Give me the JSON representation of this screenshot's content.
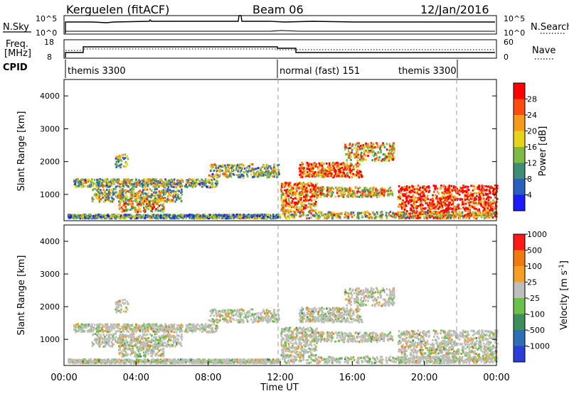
{
  "header": {
    "station": "Kerguelen (fitACF)",
    "beam": "Beam 06",
    "date": "12/Jan/2016"
  },
  "panel_labels": {
    "nsky": "N.Sky",
    "nsearch": "N.Search",
    "freq": "Freq.",
    "freq_unit": "[MHz]",
    "nave": "Nave",
    "cpid": "CPID"
  },
  "panel_ticks": {
    "noise_top": "10^5",
    "noise_bottom": "10^0",
    "freq_top": "18",
    "freq_bottom": "8",
    "nave_top": "60",
    "nave_bottom": "0"
  },
  "cpid_segments": [
    {
      "label": "themis 3300"
    },
    {
      "label": "normal (fast) 151"
    },
    {
      "label": "themis 3300"
    }
  ],
  "chart_data": [
    {
      "type": "heatmap",
      "name": "power",
      "ylabel": "Slant Range [km]",
      "ylim": [
        200,
        4500
      ],
      "yticks": [
        "1000",
        "2000",
        "3000",
        "4000"
      ],
      "xlim": [
        0,
        24
      ],
      "colorbar_label": "Power [dB]",
      "colorbar_ticks": [
        "4",
        "8",
        "12",
        "16",
        "20",
        "24",
        "28"
      ],
      "colors": [
        "#1a1aff",
        "#2a5fc0",
        "#3f8d74",
        "#7dbb44",
        "#e8d21a",
        "#f59a1a",
        "#ff4a10",
        "#ff0000"
      ],
      "grid": false
    },
    {
      "type": "heatmap",
      "name": "velocity",
      "ylabel": "Slant Range [km]",
      "ylim": [
        200,
        4500
      ],
      "yticks": [
        "1000",
        "2000",
        "3000",
        "4000"
      ],
      "xlim": [
        0,
        24
      ],
      "xlabel": "Time UT",
      "xticks": [
        "00:00",
        "04:00",
        "08:00",
        "12:00",
        "16:00",
        "20:00",
        "00:00"
      ],
      "colorbar_label": "Velocity [m s",
      "colorbar_label_sup": "-1",
      "colorbar_label_end": "]",
      "colorbar_ticks": [
        "1000",
        "500",
        "100",
        "25",
        "-25",
        "-100",
        "-500",
        "-1000"
      ],
      "colors": [
        "#2a3fd8",
        "#2d6fb4",
        "#3c8e5c",
        "#6cc04a",
        "#bebebe",
        "#f5a024",
        "#f07a10",
        "#ff1a1a"
      ],
      "grid": false
    }
  ]
}
